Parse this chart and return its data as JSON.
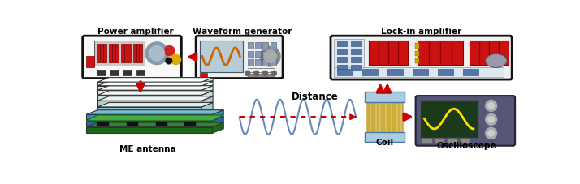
{
  "bg_color": "#ffffff",
  "fig_width": 7.14,
  "fig_height": 2.27,
  "dpi": 100,
  "labels": {
    "power_amp": "Power amplifier",
    "waveform_gen": "Waveform generator",
    "lockin_amp": "Lock-in amplifier",
    "me_antenna": "ME antenna",
    "coil": "Coil",
    "oscilloscope": "Oscilloscope",
    "distance": "Distance"
  },
  "red": "#cc0000",
  "font_size_label": 7.5
}
